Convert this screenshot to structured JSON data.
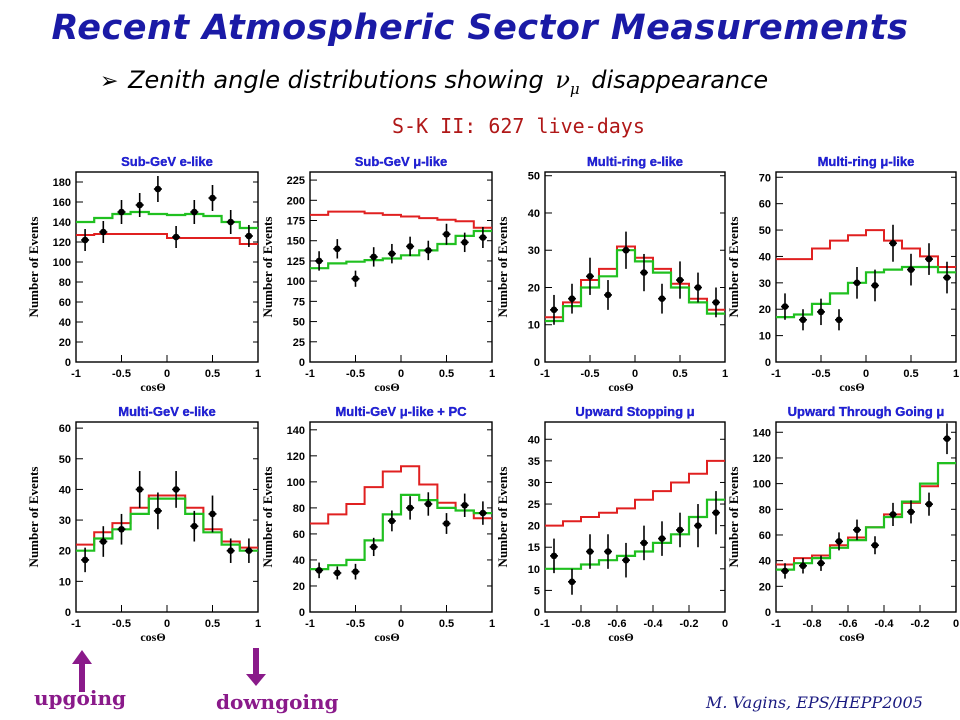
{
  "header": {
    "title": "Recent Atmospheric Sector Measurements",
    "subtitle_prefix": "Zenith angle distributions showing",
    "subtitle_symbol": "ν",
    "subtitle_symbol_sub": "μ",
    "subtitle_suffix": "disappearance",
    "dataset_label": "S-K II: 627 live-days"
  },
  "footer": {
    "upgoing_label": "upgoing",
    "downgoing_label": "downgoing",
    "credit": "M. Vagins, EPS/HEPP2005"
  },
  "colors": {
    "title": "#1a1aa6",
    "panel_title": "#2222dd",
    "null_oscillation": "#e02020",
    "best_fit": "#20c020",
    "data": "#000000",
    "arrows": "#8a1a8a"
  },
  "chart_data": [
    {
      "type": "step+errorbar",
      "title": "Sub-GeV e-like",
      "xlabel": "cosΘ",
      "ylabel": "Number of Events",
      "xlim": [
        -1,
        1
      ],
      "ylim": [
        0,
        190
      ],
      "xticks": [
        -1,
        -0.5,
        0,
        0.5,
        1
      ],
      "xtick_labels": [
        "-1",
        "-0.5",
        "0",
        "0.5",
        "1"
      ],
      "yticks": [
        0,
        20,
        40,
        60,
        80,
        100,
        120,
        140,
        160,
        180
      ],
      "bins": [
        -1,
        -0.8,
        -0.6,
        -0.4,
        -0.2,
        0,
        0.2,
        0.4,
        0.6,
        0.8,
        1
      ],
      "no_osc": [
        127,
        128,
        128,
        128,
        128,
        124,
        124,
        124,
        124,
        118
      ],
      "best_fit": [
        140,
        144,
        148,
        150,
        148,
        147,
        148,
        146,
        140,
        134
      ],
      "data_x": [
        -0.9,
        -0.7,
        -0.5,
        -0.3,
        -0.1,
        0.1,
        0.3,
        0.5,
        0.7,
        0.9
      ],
      "data_y": [
        122,
        130,
        150,
        157,
        173,
        125,
        150,
        164,
        140,
        126
      ],
      "data_err": [
        11,
        11,
        12,
        12,
        13,
        11,
        12,
        13,
        12,
        11
      ]
    },
    {
      "type": "step+errorbar",
      "title": "Sub-GeV μ-like",
      "xlabel": "cosΘ",
      "ylabel": "Number of Events",
      "xlim": [
        -1,
        1
      ],
      "ylim": [
        0,
        235
      ],
      "xticks": [
        -1,
        -0.5,
        0,
        0.5,
        1
      ],
      "xtick_labels": [
        "-1",
        "-0.5",
        "0",
        "0.5",
        "1"
      ],
      "yticks": [
        0,
        25,
        50,
        75,
        100,
        125,
        150,
        175,
        200,
        225
      ],
      "bins": [
        -1,
        -0.8,
        -0.6,
        -0.4,
        -0.2,
        0,
        0.2,
        0.4,
        0.6,
        0.8,
        1
      ],
      "no_osc": [
        182,
        186,
        186,
        184,
        182,
        180,
        178,
        176,
        174,
        166
      ],
      "best_fit": [
        116,
        122,
        124,
        126,
        128,
        132,
        138,
        146,
        156,
        162
      ],
      "data_x": [
        -0.9,
        -0.7,
        -0.5,
        -0.3,
        -0.1,
        0.1,
        0.3,
        0.5,
        0.7,
        0.9
      ],
      "data_y": [
        125,
        140,
        103,
        130,
        134,
        143,
        138,
        158,
        148,
        154
      ],
      "data_err": [
        12,
        12,
        10,
        12,
        12,
        12,
        12,
        13,
        12,
        13
      ]
    },
    {
      "type": "step+errorbar",
      "title": "Multi-ring e-like",
      "xlabel": "cosΘ",
      "ylabel": "Number of Events",
      "xlim": [
        -1,
        1
      ],
      "ylim": [
        0,
        51
      ],
      "xticks": [
        -1,
        -0.5,
        0,
        0.5,
        1
      ],
      "xtick_labels": [
        "-1",
        "-0.5",
        "0",
        "0.5",
        "1"
      ],
      "yticks": [
        0,
        10,
        20,
        30,
        40,
        50
      ],
      "bins": [
        -1,
        -0.8,
        -0.6,
        -0.4,
        -0.2,
        0,
        0.2,
        0.4,
        0.6,
        0.8,
        1
      ],
      "no_osc": [
        12,
        16,
        22,
        25,
        31,
        28,
        25,
        21,
        17,
        14
      ],
      "best_fit": [
        11,
        15,
        20,
        23,
        30,
        27,
        24,
        20,
        16,
        13
      ],
      "data_x": [
        -0.9,
        -0.7,
        -0.5,
        -0.3,
        -0.1,
        0.1,
        0.3,
        0.5,
        0.7,
        0.9
      ],
      "data_y": [
        14,
        17,
        23,
        18,
        30,
        24,
        17,
        22,
        20,
        16
      ],
      "data_err": [
        4,
        4,
        5,
        4,
        5,
        5,
        4,
        5,
        4,
        4
      ]
    },
    {
      "type": "step+errorbar",
      "title": "Multi-ring μ-like",
      "xlabel": "cosΘ",
      "ylabel": "Number of Events",
      "xlim": [
        -1,
        1
      ],
      "ylim": [
        0,
        72
      ],
      "xticks": [
        -1,
        -0.5,
        0,
        0.5,
        1
      ],
      "xtick_labels": [
        "-1",
        "-0.5",
        "0",
        "0.5",
        "1"
      ],
      "yticks": [
        0,
        10,
        20,
        30,
        40,
        50,
        60,
        70
      ],
      "bins": [
        -1,
        -0.8,
        -0.6,
        -0.4,
        -0.2,
        0,
        0.2,
        0.4,
        0.6,
        0.8,
        1
      ],
      "no_osc": [
        39,
        39,
        43,
        46,
        48,
        50,
        46,
        43,
        40,
        36
      ],
      "best_fit": [
        17,
        18,
        22,
        26,
        30,
        34,
        35,
        36,
        36,
        34
      ],
      "data_x": [
        -0.9,
        -0.7,
        -0.5,
        -0.3,
        -0.1,
        0.1,
        0.3,
        0.5,
        0.7,
        0.9
      ],
      "data_y": [
        21,
        16,
        19,
        16,
        30,
        29,
        45,
        35,
        39,
        32
      ],
      "data_err": [
        5,
        4,
        5,
        4,
        6,
        6,
        7,
        6,
        6,
        6
      ]
    },
    {
      "type": "step+errorbar",
      "title": "Multi-GeV e-like",
      "xlabel": "cosΘ",
      "ylabel": "Number of Events",
      "xlim": [
        -1,
        1
      ],
      "ylim": [
        0,
        62
      ],
      "xticks": [
        -1,
        -0.5,
        0,
        0.5,
        1
      ],
      "xtick_labels": [
        "-1",
        "-0.5",
        "0",
        "0.5",
        "1"
      ],
      "yticks": [
        0,
        10,
        20,
        30,
        40,
        50,
        60
      ],
      "bins": [
        -1,
        -0.8,
        -0.6,
        -0.4,
        -0.2,
        0,
        0.2,
        0.4,
        0.6,
        0.8,
        1
      ],
      "no_osc": [
        22,
        26,
        29,
        34,
        38,
        38,
        34,
        27,
        23,
        21
      ],
      "best_fit": [
        20,
        24,
        27,
        32,
        37,
        37,
        32,
        26,
        22,
        20
      ],
      "data_x": [
        -0.9,
        -0.7,
        -0.5,
        -0.3,
        -0.1,
        0.1,
        0.3,
        0.5,
        0.7,
        0.9
      ],
      "data_y": [
        17,
        23,
        27,
        40,
        33,
        40,
        28,
        32,
        20,
        20
      ],
      "data_err": [
        4,
        5,
        5,
        6,
        6,
        6,
        5,
        6,
        4,
        4
      ]
    },
    {
      "type": "step+errorbar",
      "title": "Multi-GeV μ-like + PC",
      "xlabel": "cosΘ",
      "ylabel": "Number of Events",
      "xlim": [
        -1,
        1
      ],
      "ylim": [
        0,
        146
      ],
      "xticks": [
        -1,
        -0.5,
        0,
        0.5,
        1
      ],
      "xtick_labels": [
        "-1",
        "-0.5",
        "0",
        "0.5",
        "1"
      ],
      "yticks": [
        0,
        20,
        40,
        60,
        80,
        100,
        120,
        140
      ],
      "bins": [
        -1,
        -0.8,
        -0.6,
        -0.4,
        -0.2,
        0,
        0.2,
        0.4,
        0.6,
        0.8,
        1
      ],
      "no_osc": [
        68,
        75,
        83,
        96,
        108,
        112,
        98,
        84,
        78,
        72
      ],
      "best_fit": [
        33,
        36,
        40,
        55,
        75,
        90,
        86,
        80,
        78,
        76
      ],
      "data_x": [
        -0.9,
        -0.7,
        -0.5,
        -0.3,
        -0.1,
        0.1,
        0.3,
        0.5,
        0.7,
        0.9
      ],
      "data_y": [
        32,
        30,
        31,
        50,
        70,
        80,
        83,
        68,
        82,
        76
      ],
      "data_err": [
        6,
        5,
        6,
        7,
        8,
        9,
        9,
        8,
        9,
        9
      ]
    },
    {
      "type": "step+errorbar",
      "title": "Upward Stopping μ",
      "xlabel": "cosΘ",
      "ylabel": "Number of Events",
      "xlim": [
        -1,
        0
      ],
      "ylim": [
        0,
        44
      ],
      "xticks": [
        -1,
        -0.8,
        -0.6,
        -0.4,
        -0.2,
        0
      ],
      "xtick_labels": [
        "-1",
        "-0.8",
        "-0.6",
        "-0.4",
        "-0.2",
        "0"
      ],
      "yticks": [
        0,
        5,
        10,
        15,
        20,
        25,
        30,
        35,
        40
      ],
      "bins": [
        -1,
        -0.9,
        -0.8,
        -0.7,
        -0.6,
        -0.5,
        -0.4,
        -0.3,
        -0.2,
        -0.1,
        0
      ],
      "no_osc": [
        20,
        21,
        22,
        23,
        24,
        26,
        28,
        30,
        32,
        35
      ],
      "best_fit": [
        10,
        10,
        11,
        12,
        13,
        14,
        16,
        18,
        22,
        26
      ],
      "data_x": [
        -0.95,
        -0.85,
        -0.75,
        -0.65,
        -0.55,
        -0.45,
        -0.35,
        -0.25,
        -0.15,
        -0.05
      ],
      "data_y": [
        13,
        7,
        14,
        14,
        12,
        16,
        17,
        19,
        20,
        23
      ],
      "data_err": [
        4,
        3,
        4,
        4,
        4,
        4,
        4,
        4,
        5,
        5
      ]
    },
    {
      "type": "step+errorbar",
      "title": "Upward Through Going μ",
      "xlabel": "cosΘ",
      "ylabel": "Number of Events",
      "xlim": [
        -1,
        0
      ],
      "ylim": [
        0,
        148
      ],
      "xticks": [
        -1,
        -0.8,
        -0.6,
        -0.4,
        -0.2,
        0
      ],
      "xtick_labels": [
        "-1",
        "-0.8",
        "-0.6",
        "-0.4",
        "-0.2",
        "0"
      ],
      "yticks": [
        0,
        20,
        40,
        60,
        80,
        100,
        120,
        140
      ],
      "bins": [
        -1,
        -0.9,
        -0.8,
        -0.7,
        -0.6,
        -0.5,
        -0.4,
        -0.3,
        -0.2,
        -0.1,
        0
      ],
      "no_osc": [
        37,
        42,
        44,
        52,
        58,
        66,
        76,
        85,
        98,
        116
      ],
      "best_fit": [
        33,
        38,
        42,
        50,
        56,
        66,
        74,
        86,
        100,
        116
      ],
      "data_x": [
        -0.95,
        -0.85,
        -0.75,
        -0.65,
        -0.55,
        -0.45,
        -0.35,
        -0.25,
        -0.15,
        -0.05
      ],
      "data_y": [
        32,
        36,
        38,
        55,
        64,
        52,
        76,
        78,
        84,
        135
      ],
      "data_err": [
        6,
        6,
        6,
        7,
        8,
        7,
        9,
        9,
        9,
        12
      ]
    }
  ]
}
